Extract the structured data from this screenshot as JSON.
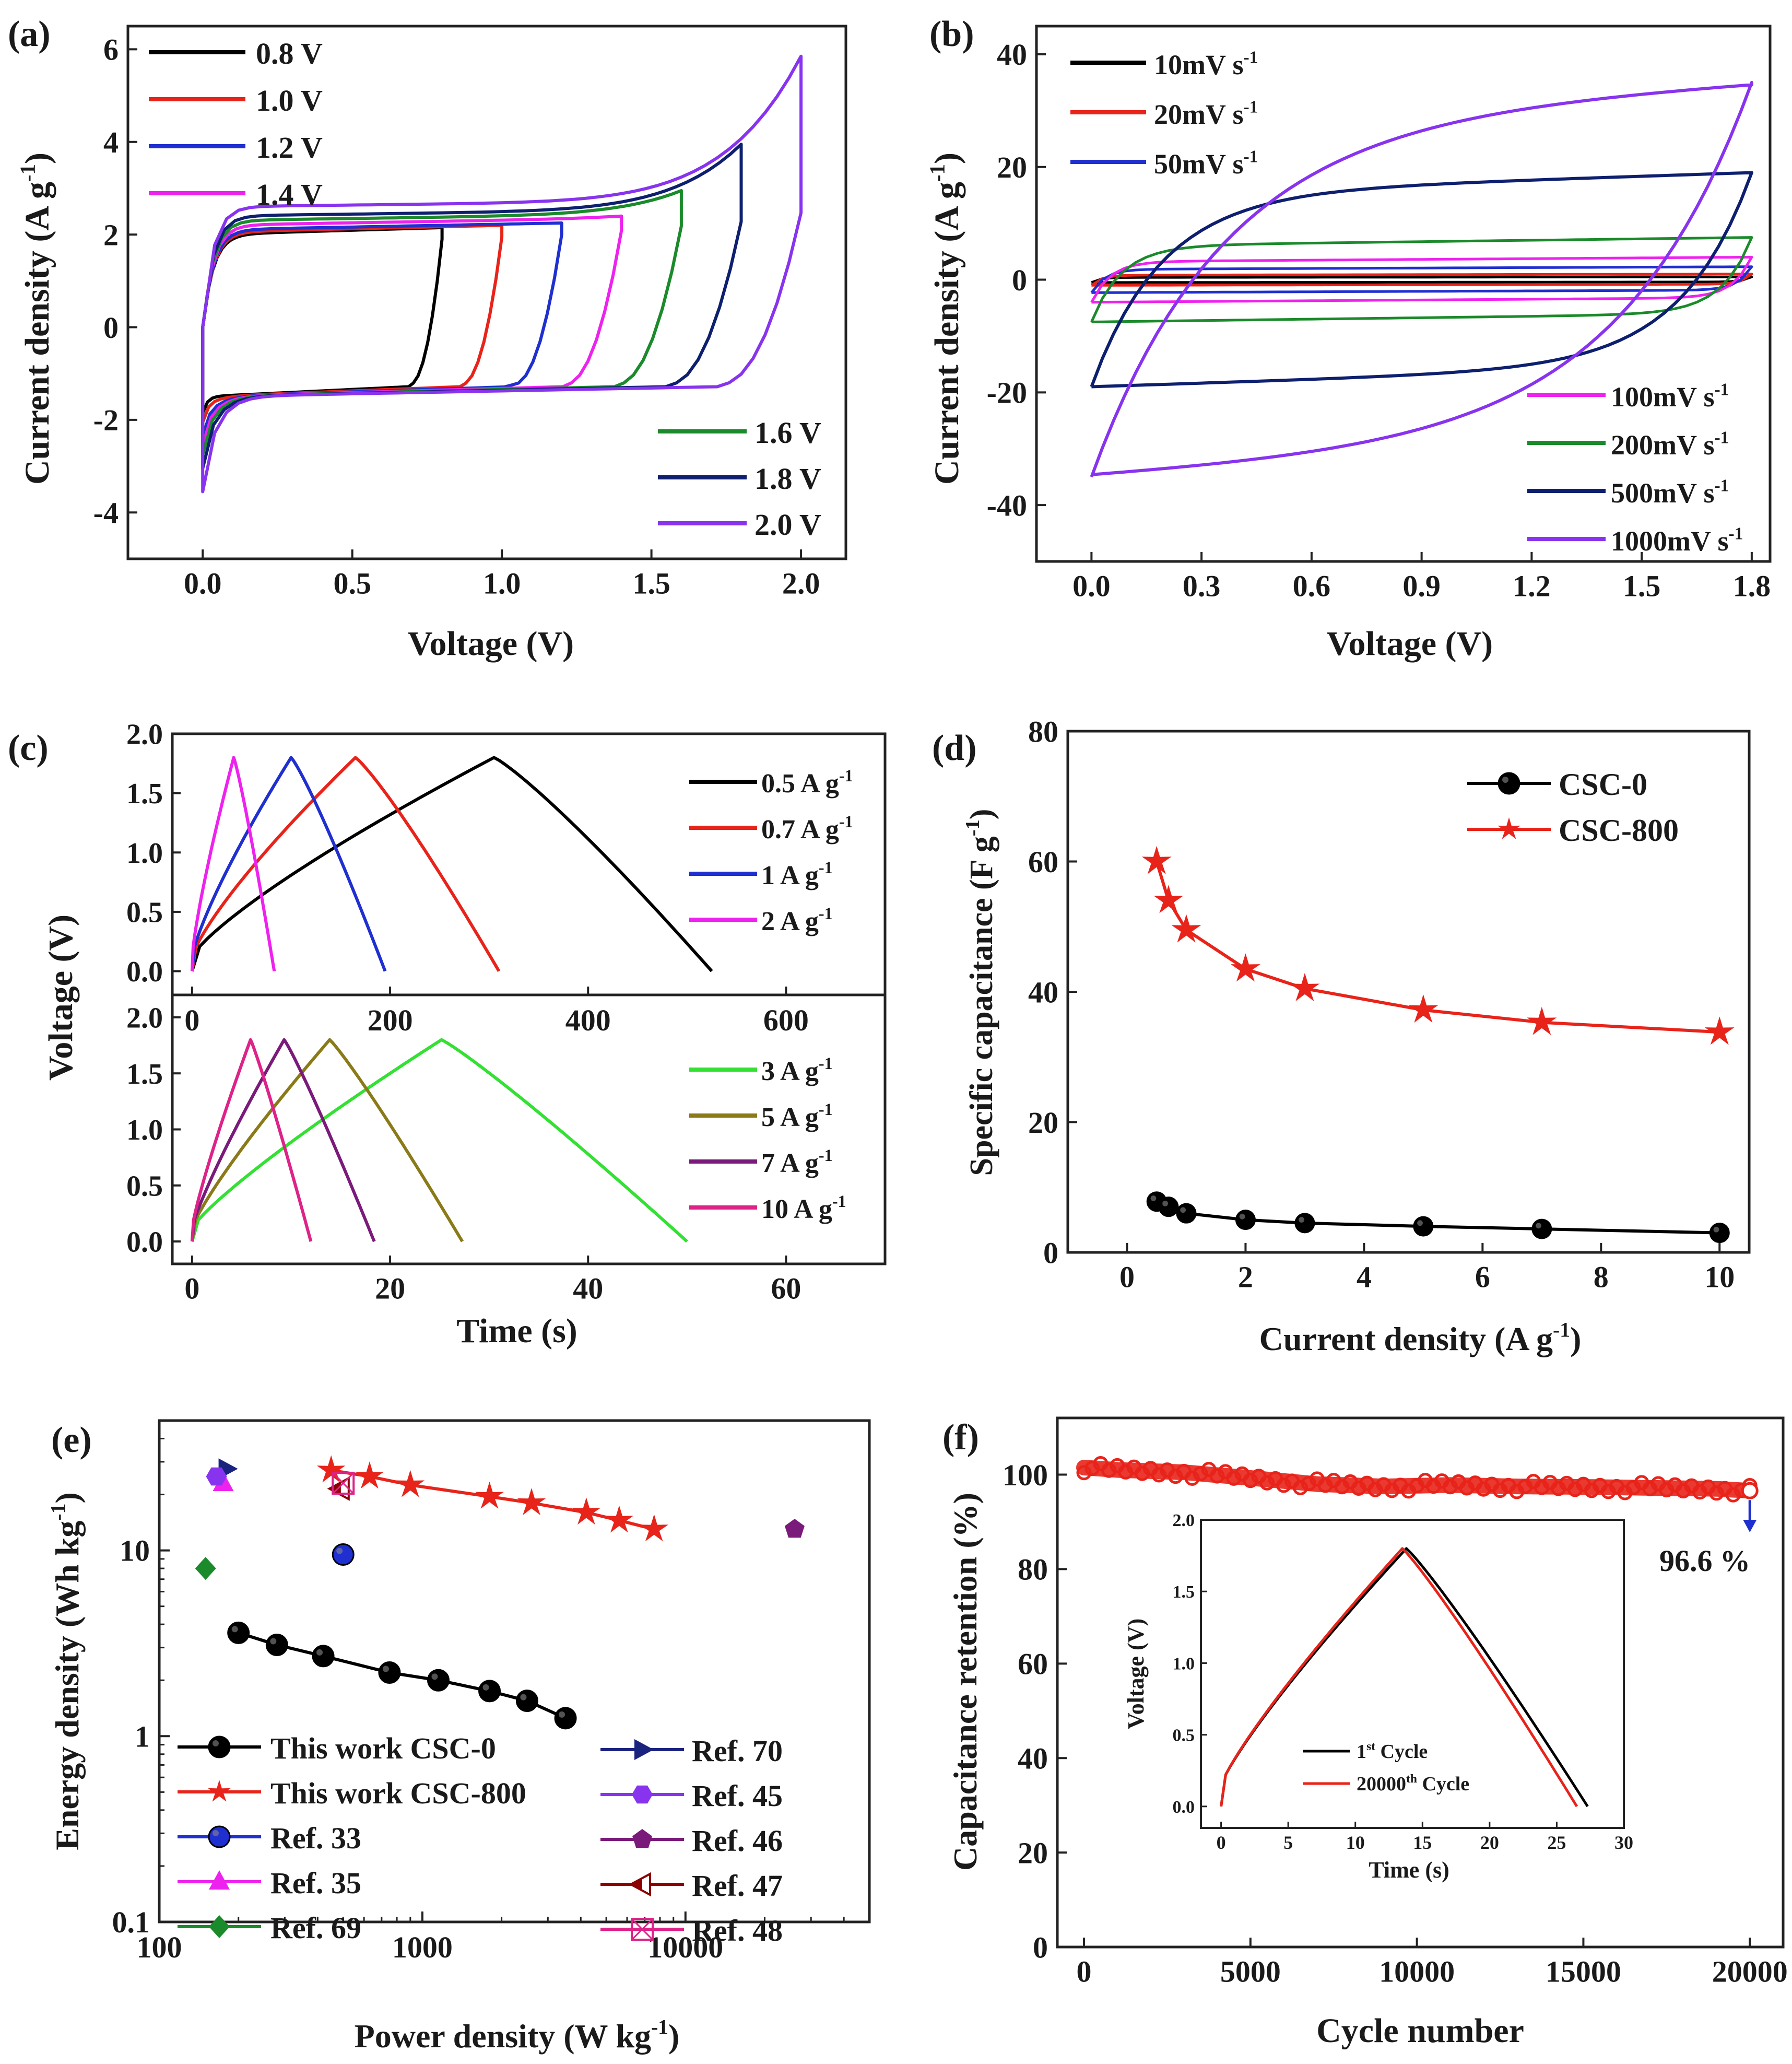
{
  "chart_data": [
    {
      "panel": "(a)",
      "type": "line",
      "xlabel": "Voltage (V)",
      "ylabel": "Current density (A g^-1)",
      "ylabel_main": "Current density (A g",
      "ylabel_sup": "-1",
      "ylabel_end": ")",
      "xlim": [
        -0.25,
        2.15
      ],
      "ylim": [
        -5,
        6.5
      ],
      "xticks": [
        0.0,
        0.5,
        1.0,
        1.5,
        2.0
      ],
      "xtick_labels": [
        "0.0",
        "0.5",
        "1.0",
        "1.5",
        "2.0"
      ],
      "yticks": [
        -4,
        -2,
        0,
        2,
        4,
        6
      ],
      "ytick_labels": [
        "-4",
        "-2",
        "0",
        "2",
        "4",
        "6"
      ],
      "legend_top_left": [
        "0.8 V",
        "1.0 V",
        "1.2 V",
        "1.4 V"
      ],
      "legend_bottom_right": [
        "1.6 V",
        "1.8 V",
        "2.0 V"
      ],
      "series": [
        {
          "name": "0.8 V",
          "color": "#000000",
          "vmax": 0.8,
          "jtop": 2.0,
          "jend": 2.0,
          "jneg": -1.6
        },
        {
          "name": "1.0 V",
          "color": "#e8231a",
          "vmax": 1.0,
          "jtop": 2.05,
          "jend": 2.05,
          "jneg": -1.8
        },
        {
          "name": "1.2 V",
          "color": "#1f2fd0",
          "vmax": 1.2,
          "jtop": 2.1,
          "jend": 2.1,
          "jneg": -2.1
        },
        {
          "name": "1.4 V",
          "color": "#ee22ee",
          "vmax": 1.4,
          "jtop": 2.2,
          "jend": 2.25,
          "jneg": -2.3
        },
        {
          "name": "1.6 V",
          "color": "#1a8a2a",
          "vmax": 1.6,
          "jtop": 2.3,
          "jend": 2.8,
          "jneg": -2.5
        },
        {
          "name": "1.8 V",
          "color": "#0d1f6e",
          "vmax": 1.8,
          "jtop": 2.4,
          "jend": 3.8,
          "jneg": -2.8
        },
        {
          "name": "2.0 V",
          "color": "#8833ee",
          "vmax": 2.0,
          "jtop": 2.6,
          "jend": 5.7,
          "jneg": -3.3
        }
      ]
    },
    {
      "panel": "(b)",
      "type": "line",
      "xlabel": "Voltage (V)",
      "ylabel": "Current density (A g^-1)",
      "ylabel_main": "Current density (A g",
      "ylabel_sup": "-1",
      "ylabel_end": ")",
      "xlim": [
        -0.15,
        1.85
      ],
      "ylim": [
        -50,
        45
      ],
      "xticks": [
        0.0,
        0.3,
        0.6,
        0.9,
        1.2,
        1.5,
        1.8
      ],
      "xtick_labels": [
        "0.0",
        "0.3",
        "0.6",
        "0.9",
        "1.2",
        "1.5",
        "1.8"
      ],
      "yticks": [
        -40,
        -20,
        0,
        20,
        40
      ],
      "ytick_labels": [
        "-40",
        "-20",
        "0",
        "20",
        "40"
      ],
      "legend_top_left": [
        "10mV s-1",
        "20mV s-1",
        "50mV s-1"
      ],
      "legend_top_left_main": [
        "10mV s",
        "20mV s",
        "50mV s"
      ],
      "legend_bottom_right": [
        "100mV s-1",
        "200mV s-1",
        "500mV s-1",
        "1000mV s-1"
      ],
      "legend_bottom_right_main": [
        "100mV s",
        "200mV s",
        "500mV s",
        "1000mV s"
      ],
      "legend_sup": "-1",
      "series": [
        {
          "name": "10mV s-1",
          "color": "#000000",
          "j": 0.5
        },
        {
          "name": "20mV s-1",
          "color": "#e8231a",
          "j": 1.0
        },
        {
          "name": "50mV s-1",
          "color": "#1f2fd0",
          "j": 2.3
        },
        {
          "name": "100mV s-1",
          "color": "#ee22ee",
          "j": 4.0
        },
        {
          "name": "200mV s-1",
          "color": "#1a8a2a",
          "j": 7.5
        },
        {
          "name": "500mV s-1",
          "color": "#0d1f6e",
          "j": 19
        },
        {
          "name": "1000mV s-1",
          "color": "#8833ee",
          "j": 35
        }
      ]
    },
    {
      "panel": "(c)",
      "type": "line",
      "xlabel": "Time (s)",
      "ylabel": "Voltage (V)",
      "top": {
        "xlim": [
          -20,
          700
        ],
        "ylim": [
          -0.2,
          2.0
        ],
        "xticks": [
          0,
          200,
          400,
          600
        ],
        "xtick_labels": [
          "0",
          "200",
          "400",
          "600"
        ],
        "yticks": [
          0.0,
          0.5,
          1.0,
          1.5,
          2.0
        ],
        "ytick_labels": [
          "0.0",
          "0.5",
          "1.0",
          "1.5",
          "2.0"
        ],
        "legend": [
          "0.5 A g-1",
          "0.7 A g-1",
          "1 A g-1",
          "2 A g-1"
        ],
        "legend_main": [
          "0.5 A g",
          "0.7 A g",
          "1 A g",
          "2 A g"
        ],
        "legend_sup": "-1",
        "series": [
          {
            "name": "0.5 A g-1",
            "color": "#000000",
            "tpeak": 305,
            "tend": 525
          },
          {
            "name": "0.7 A g-1",
            "color": "#e8231a",
            "tpeak": 165,
            "tend": 310
          },
          {
            "name": "1 A g-1",
            "color": "#1f2fd0",
            "tpeak": 100,
            "tend": 195
          },
          {
            "name": "2 A g-1",
            "color": "#ee22ee",
            "tpeak": 42,
            "tend": 83
          }
        ]
      },
      "bottom": {
        "xlim": [
          -2,
          70
        ],
        "ylim": [
          -0.2,
          2.2
        ],
        "xticks": [
          0,
          20,
          40,
          60
        ],
        "xtick_labels": [
          "0",
          "20",
          "40",
          "60"
        ],
        "yticks": [
          0.0,
          0.5,
          1.0,
          1.5,
          2.0
        ],
        "ytick_labels": [
          "0.0",
          "0.5",
          "1.0",
          "1.5",
          "2.0"
        ],
        "legend": [
          "3 A g-1",
          "5 A g-1",
          "7 A g-1",
          "10 A g-1"
        ],
        "legend_main": [
          "3 A g",
          "5 A g",
          "7 A g",
          "10 A g"
        ],
        "legend_sup": "-1",
        "series": [
          {
            "name": "3 A g-1",
            "color": "#33e033",
            "tpeak": 25.2,
            "tend": 50
          },
          {
            "name": "5 A g-1",
            "color": "#8a7a18",
            "tpeak": 13.9,
            "tend": 27.3
          },
          {
            "name": "7 A g-1",
            "color": "#7a1a7a",
            "tpeak": 9.3,
            "tend": 18.4
          },
          {
            "name": "10 A g-1",
            "color": "#dd2288",
            "tpeak": 5.9,
            "tend": 12
          }
        ]
      }
    },
    {
      "panel": "(d)",
      "type": "line",
      "xlabel": "Current density (A g^-1)",
      "xlabel_main": "Current density (A g",
      "xlabel_sup": "-1",
      "xlabel_end": ")",
      "ylabel": "Specific capacitance (F g^-1)",
      "ylabel_main": "Specific capacitance (F g",
      "ylabel_sup": "-1",
      "ylabel_end": ")",
      "xlim": [
        -1,
        10.5
      ],
      "ylim": [
        0,
        80
      ],
      "xticks": [
        0,
        2,
        4,
        6,
        8,
        10
      ],
      "xtick_labels": [
        "0",
        "2",
        "4",
        "6",
        "8",
        "10"
      ],
      "yticks": [
        0,
        20,
        40,
        60,
        80
      ],
      "ytick_labels": [
        "0",
        "20",
        "40",
        "60",
        "80"
      ],
      "legend": [
        "CSC-0",
        "CSC-800"
      ],
      "series": [
        {
          "name": "CSC-0",
          "color": "#000000",
          "marker": "circle",
          "x": [
            0.5,
            0.7,
            1,
            2,
            3,
            5,
            7,
            10
          ],
          "y": [
            7.8,
            7.0,
            6.0,
            5.0,
            4.5,
            4.0,
            3.6,
            3.0
          ]
        },
        {
          "name": "CSC-800",
          "color": "#e8231a",
          "marker": "star",
          "x": [
            0.5,
            0.7,
            1,
            2,
            3,
            5,
            7,
            10
          ],
          "y": [
            60,
            54,
            49.5,
            43.5,
            40.5,
            37.2,
            35.3,
            33.8
          ]
        }
      ]
    },
    {
      "panel": "(e)",
      "type": "scatter",
      "xlabel": "Power density (W kg^-1)",
      "xlabel_main": "Power density (W kg",
      "xlabel_sup": "-1",
      "xlabel_end": ")",
      "ylabel": "Energy density (Wh kg^-1)",
      "ylabel_main": "Energy density (Wh kg",
      "ylabel_sup": "-1",
      "ylabel_end": ")",
      "xscale": "log",
      "yscale": "log",
      "xlim": [
        100,
        50000
      ],
      "ylim": [
        0.1,
        50
      ],
      "xticks": [
        100,
        1000,
        10000
      ],
      "xtick_labels": [
        "100",
        "1000",
        "10000"
      ],
      "yticks": [
        0.1,
        1,
        10
      ],
      "ytick_labels": [
        "0.1",
        "1",
        "10"
      ],
      "legend_left": [
        "This work CSC-0",
        "This work CSC-800",
        "Ref. 33",
        "Ref. 35",
        "Ref. 69"
      ],
      "legend_right": [
        "Ref. 70",
        "Ref. 45",
        "Ref. 46",
        "Ref. 47",
        "Ref. 48"
      ],
      "series": [
        {
          "name": "This work CSC-0",
          "color": "#000000",
          "marker": "circle",
          "x": [
            200,
            280,
            420,
            750,
            1150,
            1800,
            2500,
            3500
          ],
          "y": [
            3.6,
            3.1,
            2.7,
            2.2,
            2.0,
            1.75,
            1.55,
            1.25
          ]
        },
        {
          "name": "This work CSC-800",
          "color": "#e8231a",
          "marker": "star",
          "x": [
            450,
            630,
            900,
            1800,
            2600,
            4200,
            5600,
            7600
          ],
          "y": [
            27,
            25,
            22.5,
            19.5,
            18,
            16,
            14.5,
            13
          ]
        },
        {
          "name": "Ref. 33",
          "color": "#1f2fd0",
          "marker": "circle",
          "x": [
            500
          ],
          "y": [
            9.5
          ]
        },
        {
          "name": "Ref. 35",
          "color": "#ee22ee",
          "marker": "triangle",
          "x": [
            175
          ],
          "y": [
            23
          ]
        },
        {
          "name": "Ref. 69",
          "color": "#1a8a2a",
          "marker": "diamond",
          "x": [
            150
          ],
          "y": [
            8
          ]
        },
        {
          "name": "Ref. 70",
          "color": "#1a237e",
          "marker": "triangle-right",
          "x": [
            180
          ],
          "y": [
            27.5
          ]
        },
        {
          "name": "Ref. 45",
          "color": "#8833ee",
          "marker": "hexagon",
          "x": [
            165
          ],
          "y": [
            25
          ]
        },
        {
          "name": "Ref. 46",
          "color": "#7a1a7a",
          "marker": "pentagon",
          "x": [
            26000
          ],
          "y": [
            13
          ]
        },
        {
          "name": "Ref. 47",
          "color": "#8b0000",
          "marker": "triangle-left",
          "x": [
            490
          ],
          "y": [
            21.5
          ]
        },
        {
          "name": "Ref. 48",
          "color": "#dd2288",
          "marker": "boxed-x",
          "x": [
            500
          ],
          "y": [
            23
          ]
        }
      ]
    },
    {
      "panel": "(f)",
      "type": "line",
      "xlabel": "Cycle number",
      "ylabel": "Capacitance retention (%)",
      "xlim": [
        -800,
        21000
      ],
      "ylim": [
        0,
        112
      ],
      "xticks": [
        0,
        5000,
        10000,
        15000,
        20000
      ],
      "xtick_labels": [
        "0",
        "5000",
        "10000",
        "15000",
        "20000"
      ],
      "yticks": [
        0,
        20,
        40,
        60,
        80,
        100
      ],
      "ytick_labels": [
        "0",
        "20",
        "40",
        "60",
        "80",
        "100"
      ],
      "annotation": "96.6 %",
      "final_retention": 96.6,
      "series": [
        {
          "name": "retention",
          "color": "#e8231a",
          "x": [
            0,
            1000,
            3000,
            5000,
            7000,
            9000,
            11000,
            13000,
            15000,
            17000,
            19000,
            20000
          ],
          "y": [
            101.5,
            101,
            100.5,
            99.3,
            98,
            97.5,
            97.8,
            97.5,
            97.4,
            97.2,
            97,
            96.6
          ]
        }
      ],
      "inset": {
        "xlabel": "Time (s)",
        "ylabel": "Voltage (V)",
        "xlim": [
          -1.5,
          30
        ],
        "ylim": [
          -0.15,
          2.0
        ],
        "xticks": [
          0,
          5,
          10,
          15,
          20,
          25,
          30
        ],
        "xtick_labels": [
          "0",
          "5",
          "10",
          "15",
          "20",
          "25",
          "30"
        ],
        "yticks": [
          0.0,
          0.5,
          1.0,
          1.5,
          2.0
        ],
        "ytick_labels": [
          "0.0",
          "0.5",
          "1.0",
          "1.5",
          "2.0"
        ],
        "legend_main": [
          "1",
          "20000"
        ],
        "legend_sup": [
          "st",
          "th"
        ],
        "legend_end": [
          " Cycle",
          " Cycle"
        ],
        "series": [
          {
            "name": "1st Cycle",
            "color": "#000000",
            "tpeak": 13.8,
            "tend": 27.3
          },
          {
            "name": "20000th Cycle",
            "color": "#e8231a",
            "tpeak": 13.5,
            "tend": 26.5
          }
        ]
      }
    }
  ]
}
